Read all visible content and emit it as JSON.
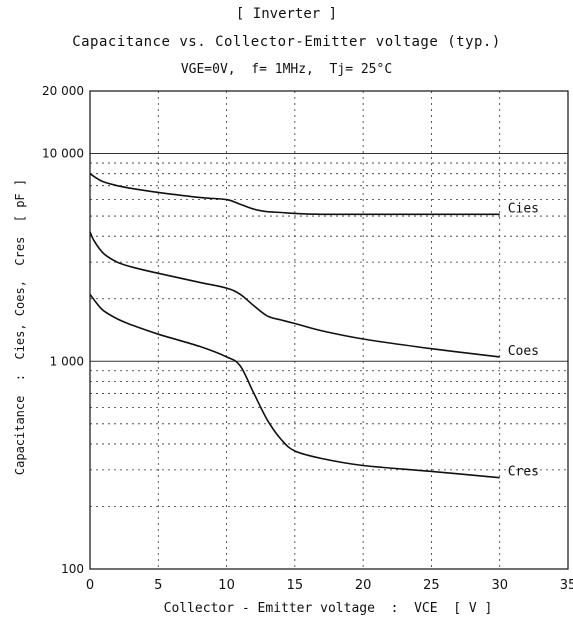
{
  "header": {
    "title": "[ Inverter ]",
    "subtitle": "Capacitance vs. Collector-Emitter voltage (typ.)",
    "conditions": "VGE=0V,  f= 1MHz,  Tj= 25°C"
  },
  "chart_data": {
    "type": "line",
    "title": "[ Inverter ]",
    "subtitle": "Capacitance vs. Collector-Emitter voltage (typ.)",
    "conditions": "VGE=0V,  f= 1MHz,  Tj= 25°C",
    "xlabel": "Collector - Emitter voltage  :  VCE  [ V ]",
    "ylabel": "Capacitance  :  Cies, Coes,  Cres  [ pF ]",
    "xlim": [
      0,
      35
    ],
    "ylim": [
      100,
      20000
    ],
    "yscale": "log",
    "grid": true,
    "x_ticks": [
      0,
      5,
      10,
      15,
      20,
      25,
      30,
      35
    ],
    "y_ticks": [
      {
        "value": 100,
        "label": "100"
      },
      {
        "value": 1000,
        "label": "1 000"
      },
      {
        "value": 10000,
        "label": "10 000"
      },
      {
        "value": 20000,
        "label": "20 000"
      }
    ],
    "series": [
      {
        "name": "Cies",
        "x": [
          0,
          0.5,
          1,
          2,
          3,
          5,
          8,
          10,
          11,
          12,
          13,
          14,
          15,
          17,
          20,
          25,
          30
        ],
        "y": [
          8000,
          7600,
          7300,
          7000,
          6800,
          6500,
          6150,
          6000,
          5700,
          5400,
          5250,
          5200,
          5150,
          5100,
          5100,
          5100,
          5100
        ]
      },
      {
        "name": "Coes",
        "x": [
          0,
          0.3,
          1,
          2,
          3,
          5,
          8,
          10,
          11,
          12,
          13,
          14,
          15,
          17,
          20,
          25,
          30
        ],
        "y": [
          4200,
          3800,
          3300,
          3000,
          2850,
          2650,
          2400,
          2250,
          2100,
          1850,
          1650,
          1580,
          1520,
          1400,
          1280,
          1150,
          1050
        ]
      },
      {
        "name": "Cres",
        "x": [
          0,
          0.5,
          1,
          2,
          3,
          5,
          8,
          10,
          11,
          12,
          13,
          14,
          15,
          17,
          20,
          25,
          30
        ],
        "y": [
          2100,
          1900,
          1750,
          1600,
          1500,
          1350,
          1180,
          1050,
          950,
          700,
          520,
          420,
          370,
          340,
          315,
          295,
          275
        ]
      }
    ]
  }
}
